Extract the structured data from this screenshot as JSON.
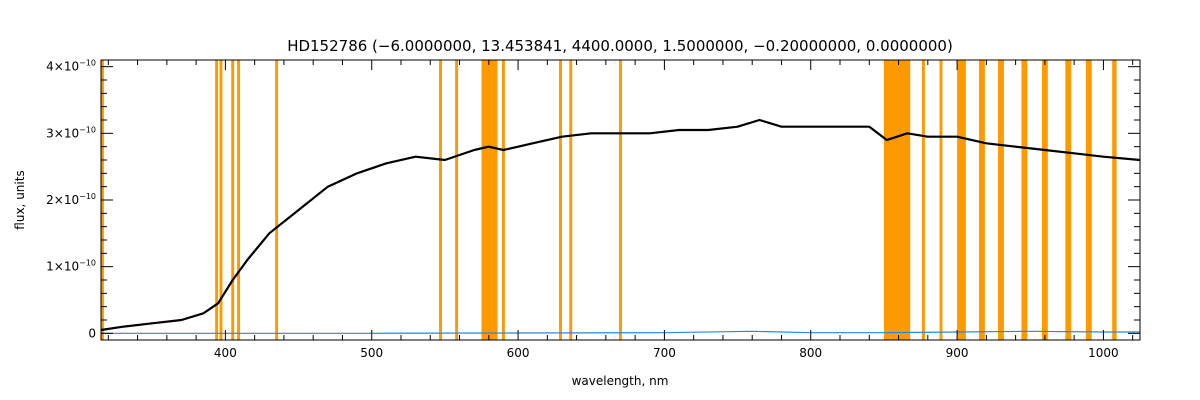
{
  "chart_data": {
    "type": "line",
    "title": "HD152786    (−6.0000000, 13.453841, 4400.0000, 1.5000000, −0.20000000, 0.0000000)",
    "xlabel": "wavelength, nm",
    "ylabel": "flux, units",
    "xlim": [
      315,
      1025
    ],
    "ylim": [
      -1e-11,
      4.1e-10
    ],
    "grid": false,
    "x_ticks": [
      {
        "value": 400,
        "label": "400"
      },
      {
        "value": 500,
        "label": "500"
      },
      {
        "value": 600,
        "label": "600"
      },
      {
        "value": 700,
        "label": "700"
      },
      {
        "value": 800,
        "label": "800"
      },
      {
        "value": 900,
        "label": "900"
      },
      {
        "value": 1000,
        "label": "1000"
      }
    ],
    "y_ticks": [
      {
        "value": 0,
        "mantissa": "0",
        "exponent": ""
      },
      {
        "value": 1e-10,
        "mantissa": "1×10",
        "exponent": "−10"
      },
      {
        "value": 2e-10,
        "mantissa": "2×10",
        "exponent": "−10"
      },
      {
        "value": 3e-10,
        "mantissa": "3×10",
        "exponent": "−10"
      },
      {
        "value": 4e-10,
        "mantissa": "4×10",
        "exponent": "−10"
      }
    ],
    "x_minor_step": 20,
    "y_minor_step": 2e-11,
    "colors": {
      "flux": "#000000",
      "error": "#2a88d8",
      "mask": "#ff9900",
      "axes": "#000000"
    },
    "series": [
      {
        "role": "flux",
        "x": [
          315,
          330,
          350,
          370,
          385,
          395,
          405,
          415,
          430,
          450,
          470,
          490,
          510,
          530,
          550,
          570,
          580,
          590,
          610,
          630,
          650,
          670,
          690,
          710,
          730,
          750,
          765,
          780,
          800,
          820,
          840,
          852,
          866,
          880,
          900,
          920,
          940,
          960,
          980,
          1000,
          1025
        ],
        "y": [
          5e-12,
          1e-11,
          1.5e-11,
          2e-11,
          3e-11,
          4.5e-11,
          8e-11,
          1.1e-10,
          1.5e-10,
          1.85e-10,
          2.2e-10,
          2.4e-10,
          2.55e-10,
          2.65e-10,
          2.6e-10,
          2.75e-10,
          2.8e-10,
          2.75e-10,
          2.85e-10,
          2.95e-10,
          3e-10,
          3e-10,
          3e-10,
          3.05e-10,
          3.05e-10,
          3.1e-10,
          3.2e-10,
          3.1e-10,
          3.1e-10,
          3.1e-10,
          3.1e-10,
          2.9e-10,
          3e-10,
          2.95e-10,
          2.95e-10,
          2.85e-10,
          2.8e-10,
          2.75e-10,
          2.7e-10,
          2.65e-10,
          2.6e-10
        ]
      },
      {
        "role": "error",
        "x": [
          315,
          500,
          700,
          760,
          800,
          850,
          900,
          950,
          1000,
          1025
        ],
        "y": [
          0.0,
          0.0,
          1e-12,
          3e-12,
          1e-12,
          1e-12,
          2e-12,
          3e-12,
          2e-12,
          2e-12
        ]
      }
    ],
    "masked_regions": [
      [
        315,
        317
      ],
      [
        393,
        395
      ],
      [
        396,
        398
      ],
      [
        404,
        406
      ],
      [
        408,
        410
      ],
      [
        434,
        436
      ],
      [
        546,
        548
      ],
      [
        557,
        559
      ],
      [
        575,
        586
      ],
      [
        589,
        591
      ],
      [
        628,
        630
      ],
      [
        635,
        637
      ],
      [
        669,
        671
      ],
      [
        850,
        868
      ],
      [
        876,
        878
      ],
      [
        888,
        890
      ],
      [
        900,
        906
      ],
      [
        915,
        919
      ],
      [
        928,
        932
      ],
      [
        944,
        948
      ],
      [
        958,
        962
      ],
      [
        974,
        978
      ],
      [
        988,
        992
      ],
      [
        1006,
        1009
      ]
    ]
  }
}
